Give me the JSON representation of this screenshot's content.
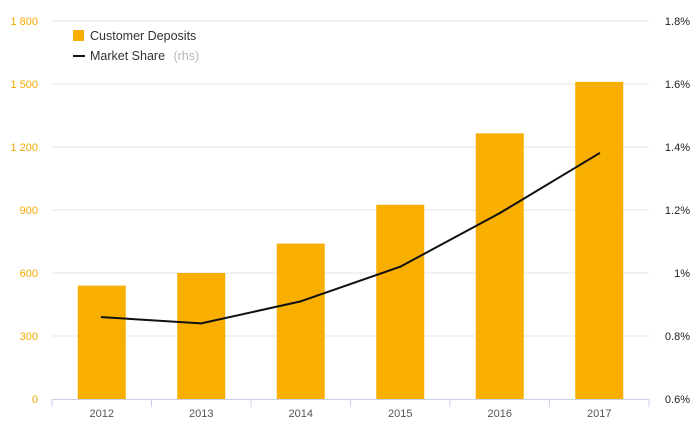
{
  "chart_data": {
    "type": "bar",
    "title": "",
    "xlabel": "",
    "ylabel": "",
    "categories": [
      "2012",
      "2013",
      "2014",
      "2015",
      "2016",
      "2017"
    ],
    "series": [
      {
        "name": "Customer Deposits",
        "type": "bar",
        "axis": "left",
        "values": [
          540,
          600,
          740,
          925,
          1265,
          1510
        ],
        "color": "#F8AF00"
      },
      {
        "name": "Market Share",
        "name_suffix": "(rhs)",
        "type": "line",
        "axis": "right",
        "values": [
          0.86,
          0.84,
          0.91,
          1.02,
          1.19,
          1.38
        ],
        "color": "#111111"
      }
    ],
    "y_left": {
      "ylim": [
        0,
        1800
      ],
      "ticks": [
        0,
        300,
        600,
        900,
        1200,
        1500,
        1800
      ],
      "tick_labels": [
        "0",
        "300",
        "600",
        "900",
        "1 200",
        "1 500",
        "1 800"
      ],
      "label_color": "#F5A800"
    },
    "y_right": {
      "ylim": [
        0.6,
        1.8
      ],
      "ticks": [
        0.6,
        0.8,
        1.0,
        1.2,
        1.4,
        1.6,
        1.8
      ],
      "tick_labels": [
        "0.6%",
        "0.8%",
        "1%",
        "1.2%",
        "1.4%",
        "1.6%",
        "1.8%"
      ],
      "label_color": "#222222"
    },
    "grid": true,
    "legend_position": "top-left"
  }
}
